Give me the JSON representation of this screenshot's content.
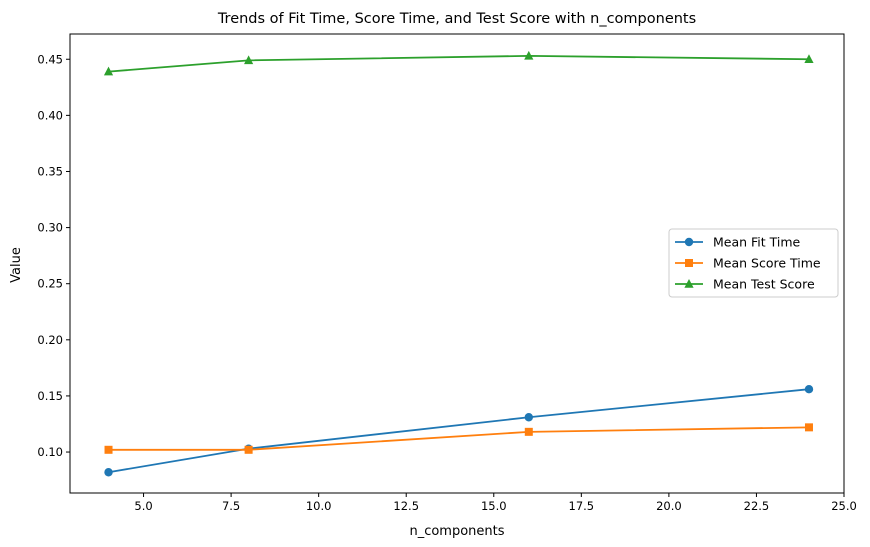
{
  "chart_data": {
    "type": "line",
    "title": "Trends of Fit Time, Score Time, and Test Score with n_components",
    "xlabel": "n_components",
    "ylabel": "Value",
    "x": [
      4,
      8,
      16,
      24
    ],
    "xlim": [
      2.9,
      25.0
    ],
    "ylim": [
      0.0635,
      0.4725
    ],
    "xticks": [
      5.0,
      7.5,
      10.0,
      12.5,
      15.0,
      17.5,
      20.0,
      22.5,
      25.0
    ],
    "xtick_labels": [
      "5.0",
      "7.5",
      "10.0",
      "12.5",
      "15.0",
      "17.5",
      "20.0",
      "22.5",
      "25.0"
    ],
    "yticks": [
      0.1,
      0.15,
      0.2,
      0.25,
      0.3,
      0.35,
      0.4,
      0.45
    ],
    "ytick_labels": [
      "0.10",
      "0.15",
      "0.20",
      "0.25",
      "0.30",
      "0.35",
      "0.40",
      "0.45"
    ],
    "grid": false,
    "legend_position": "center-right",
    "series": [
      {
        "name": "Mean Fit Time",
        "values": [
          0.082,
          0.103,
          0.131,
          0.156
        ],
        "color": "#1f77b4",
        "marker": "circle"
      },
      {
        "name": "Mean Score Time",
        "values": [
          0.102,
          0.102,
          0.118,
          0.122
        ],
        "color": "#ff7f0e",
        "marker": "square"
      },
      {
        "name": "Mean Test Score",
        "values": [
          0.439,
          0.449,
          0.453,
          0.45
        ],
        "color": "#2ca02c",
        "marker": "triangle"
      }
    ]
  }
}
